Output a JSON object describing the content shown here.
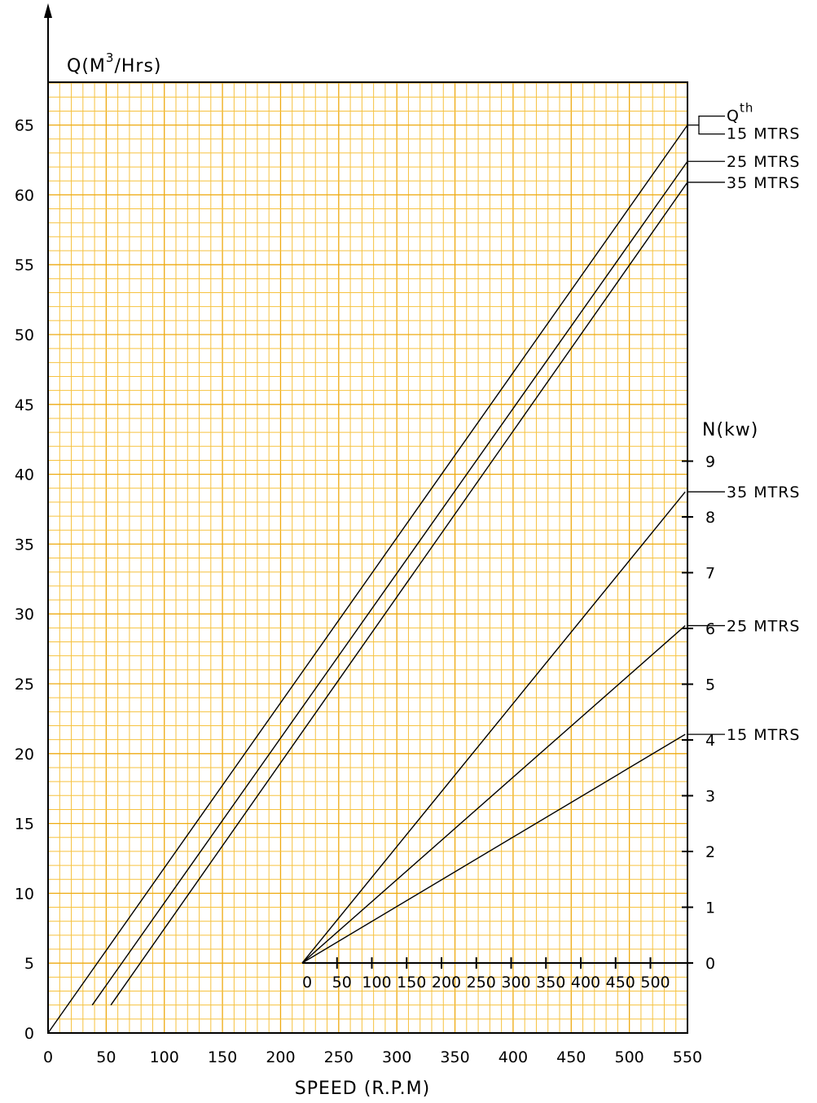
{
  "chart_data": {
    "type": "line",
    "title": "",
    "flow_axis": {
      "label_prefix": "Q(M",
      "label_sup": "3",
      "label_suffix": "/Hrs)",
      "ylim": [
        0,
        68
      ],
      "ticks": [
        0,
        5,
        10,
        15,
        20,
        25,
        30,
        35,
        40,
        45,
        50,
        55,
        60,
        65
      ],
      "tick_labels": [
        "0",
        "5",
        "10",
        "15",
        "20",
        "25",
        "30",
        "35",
        "40",
        "45",
        "50",
        "55",
        "60",
        "65"
      ]
    },
    "speed_axis": {
      "label": "SPEED  (R.P.M)",
      "xlim": [
        0,
        550
      ],
      "ticks": [
        0,
        50,
        100,
        150,
        200,
        250,
        300,
        350,
        400,
        450,
        500,
        550
      ],
      "tick_labels": [
        "0",
        "50",
        "100",
        "150",
        "200",
        "250",
        "300",
        "350",
        "400",
        "450",
        "500",
        "550"
      ]
    },
    "power_axis": {
      "label": "N(kw)",
      "ylim": [
        0,
        10.5
      ],
      "ticks": [
        0,
        1,
        2,
        3,
        4,
        5,
        6,
        7,
        8,
        9
      ],
      "tick_labels": [
        "0",
        "1",
        "2",
        "3",
        "4",
        "5",
        "6",
        "7",
        "8",
        "9"
      ]
    },
    "power_speed_axis": {
      "xlim": [
        0,
        550
      ],
      "ticks": [
        0,
        50,
        100,
        150,
        200,
        250,
        300,
        350,
        400,
        450,
        500
      ],
      "tick_labels": [
        "0",
        "50",
        "100",
        "150",
        "200",
        "250",
        "300",
        "350",
        "400",
        "450",
        "500"
      ]
    },
    "flow_series": [
      {
        "name": "15  MTRS",
        "name_prefix": "Q",
        "name_sup": "th",
        "x": [
          0,
          550
        ],
        "y": [
          0,
          65
        ]
      },
      {
        "name": "25  MTRS",
        "x": [
          38,
          550
        ],
        "y": [
          2,
          62.4
        ]
      },
      {
        "name": "35  MTRS",
        "x": [
          54,
          550
        ],
        "y": [
          2,
          60.9
        ]
      }
    ],
    "power_series": [
      {
        "name": "35  MTRS",
        "x": [
          0,
          550
        ],
        "y": [
          0,
          8.45
        ]
      },
      {
        "name": "25  MTRS",
        "x": [
          0,
          550
        ],
        "y": [
          0,
          6.05
        ]
      },
      {
        "name": "15  MTRS",
        "x": [
          0,
          550
        ],
        "y": [
          0,
          4.1
        ]
      }
    ],
    "grid": true,
    "grid_color": "#f6c23f",
    "grid_major_color": "#eeaa10",
    "line_color": "#000000"
  }
}
